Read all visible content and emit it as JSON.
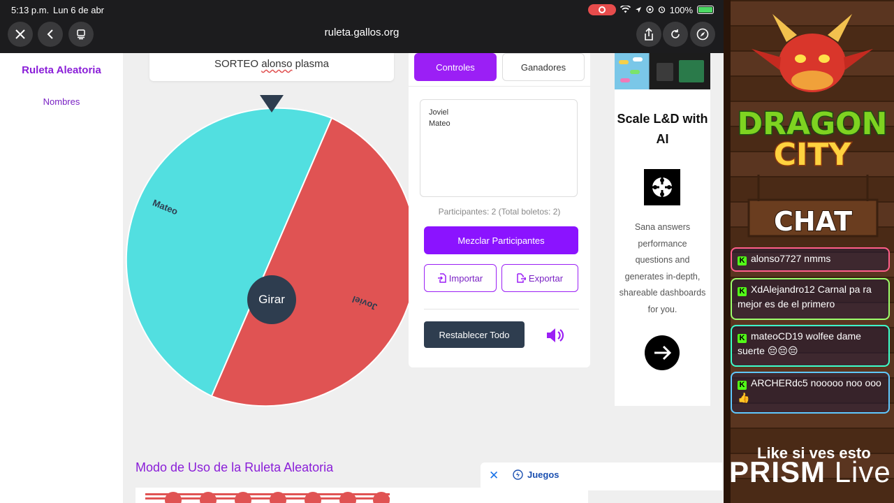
{
  "status": {
    "time": "5:13 p.m.",
    "date": "Lun 6 de abr",
    "battery": "100%"
  },
  "browser": {
    "url": "ruleta.gallos.org"
  },
  "sidebar": {
    "brand": "Ruleta Aleatoria",
    "nav_label": "Nombres"
  },
  "draw": {
    "title_prefix": "SORTEO",
    "title_word": "alonso",
    "title_suffix": "plasma"
  },
  "wheel": {
    "spin_label": "Girar",
    "segments": [
      {
        "name": "Mateo",
        "color": "#52dfe0"
      },
      {
        "name": "Joviel",
        "color": "#e05353"
      }
    ]
  },
  "panel": {
    "tabs": [
      {
        "label": "Controles",
        "active": true
      },
      {
        "label": "Ganadores",
        "active": false
      }
    ],
    "names": [
      "Joviel",
      "Mateo"
    ],
    "count_text": "Participantes: 2 (Total boletos: 2)",
    "shuffle_label": "Mezclar Participantes",
    "import_label": "Importar",
    "export_label": "Exportar",
    "reset_label": "Restablecer Todo"
  },
  "ad": {
    "title": "Scale L&D with AI",
    "text": "Sana answers performance questions and generates in-depth, shareable dashboards for you."
  },
  "section": {
    "title": "Modo de Uso de la Ruleta Aleatoria"
  },
  "bottom_ad": {
    "label": "Juegos"
  },
  "overlay": {
    "logo_line1": "DRAGON",
    "logo_line2": "CITY",
    "chat_label": "CHAT",
    "messages": [
      {
        "user": "alonso7727",
        "text": "nmms"
      },
      {
        "user": "XdAlejandro12",
        "text": "Carnal pa ra mejor es de el primero"
      },
      {
        "user": "mateoCD19",
        "text": "wolfee dame suerte 😔😔😔"
      },
      {
        "user": "ARCHERdc5",
        "text": "nooooo noo ooo 👍"
      }
    ],
    "like_text": "Like si ves esto",
    "prism_text": "PRISM",
    "live_text": "Live"
  }
}
